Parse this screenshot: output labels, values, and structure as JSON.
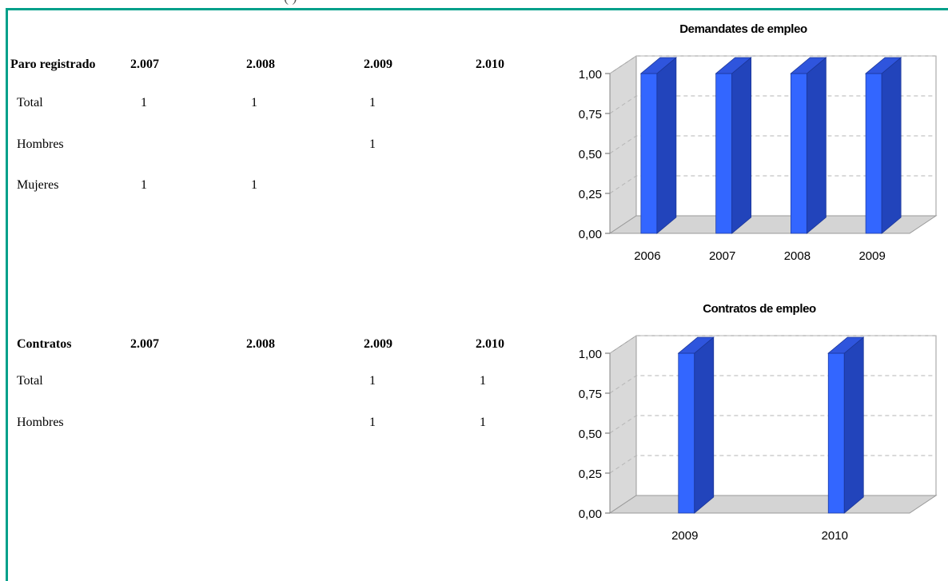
{
  "top_fragment": {
    "text": "(                                        )"
  },
  "paro": {
    "header": [
      "Paro registrado",
      "2.007",
      "2.008",
      "2.009",
      "2.010"
    ],
    "rows": [
      {
        "label": "Total",
        "cells": [
          "1",
          "1",
          "1",
          ""
        ]
      },
      {
        "label": "Hombres",
        "cells": [
          "",
          "",
          "1",
          ""
        ]
      },
      {
        "label": "Mujeres",
        "cells": [
          "1",
          "1",
          "",
          ""
        ]
      }
    ]
  },
  "contratos": {
    "header": [
      "Contratos",
      "2.007",
      "2.008",
      "2.009",
      "2.010"
    ],
    "rows": [
      {
        "label": "Total",
        "cells": [
          "",
          "",
          "1",
          "1"
        ]
      },
      {
        "label": "Hombres",
        "cells": [
          "",
          "",
          "1",
          "1"
        ]
      }
    ]
  },
  "chart_data": [
    {
      "type": "bar",
      "title": "Demandates de empleo",
      "categories": [
        "2006",
        "2007",
        "2008",
        "2009"
      ],
      "values": [
        1,
        1,
        1,
        1
      ],
      "ylim": [
        0,
        1
      ],
      "yticks": [
        "0,00",
        "0,25",
        "0,50",
        "0,75",
        "1,00"
      ],
      "grid": true,
      "bar_color": "#3366ff",
      "bar_side_color": "#2244bb",
      "floor_color": "#d4d4d4"
    },
    {
      "type": "bar",
      "title": "Contratos de empleo",
      "categories": [
        "2009",
        "2010"
      ],
      "values": [
        1,
        1
      ],
      "ylim": [
        0,
        1
      ],
      "yticks": [
        "0,00",
        "0,25",
        "0,50",
        "0,75",
        "1,00"
      ],
      "grid": true,
      "bar_color": "#3366ff",
      "bar_side_color": "#2244bb",
      "floor_color": "#d4d4d4"
    }
  ]
}
